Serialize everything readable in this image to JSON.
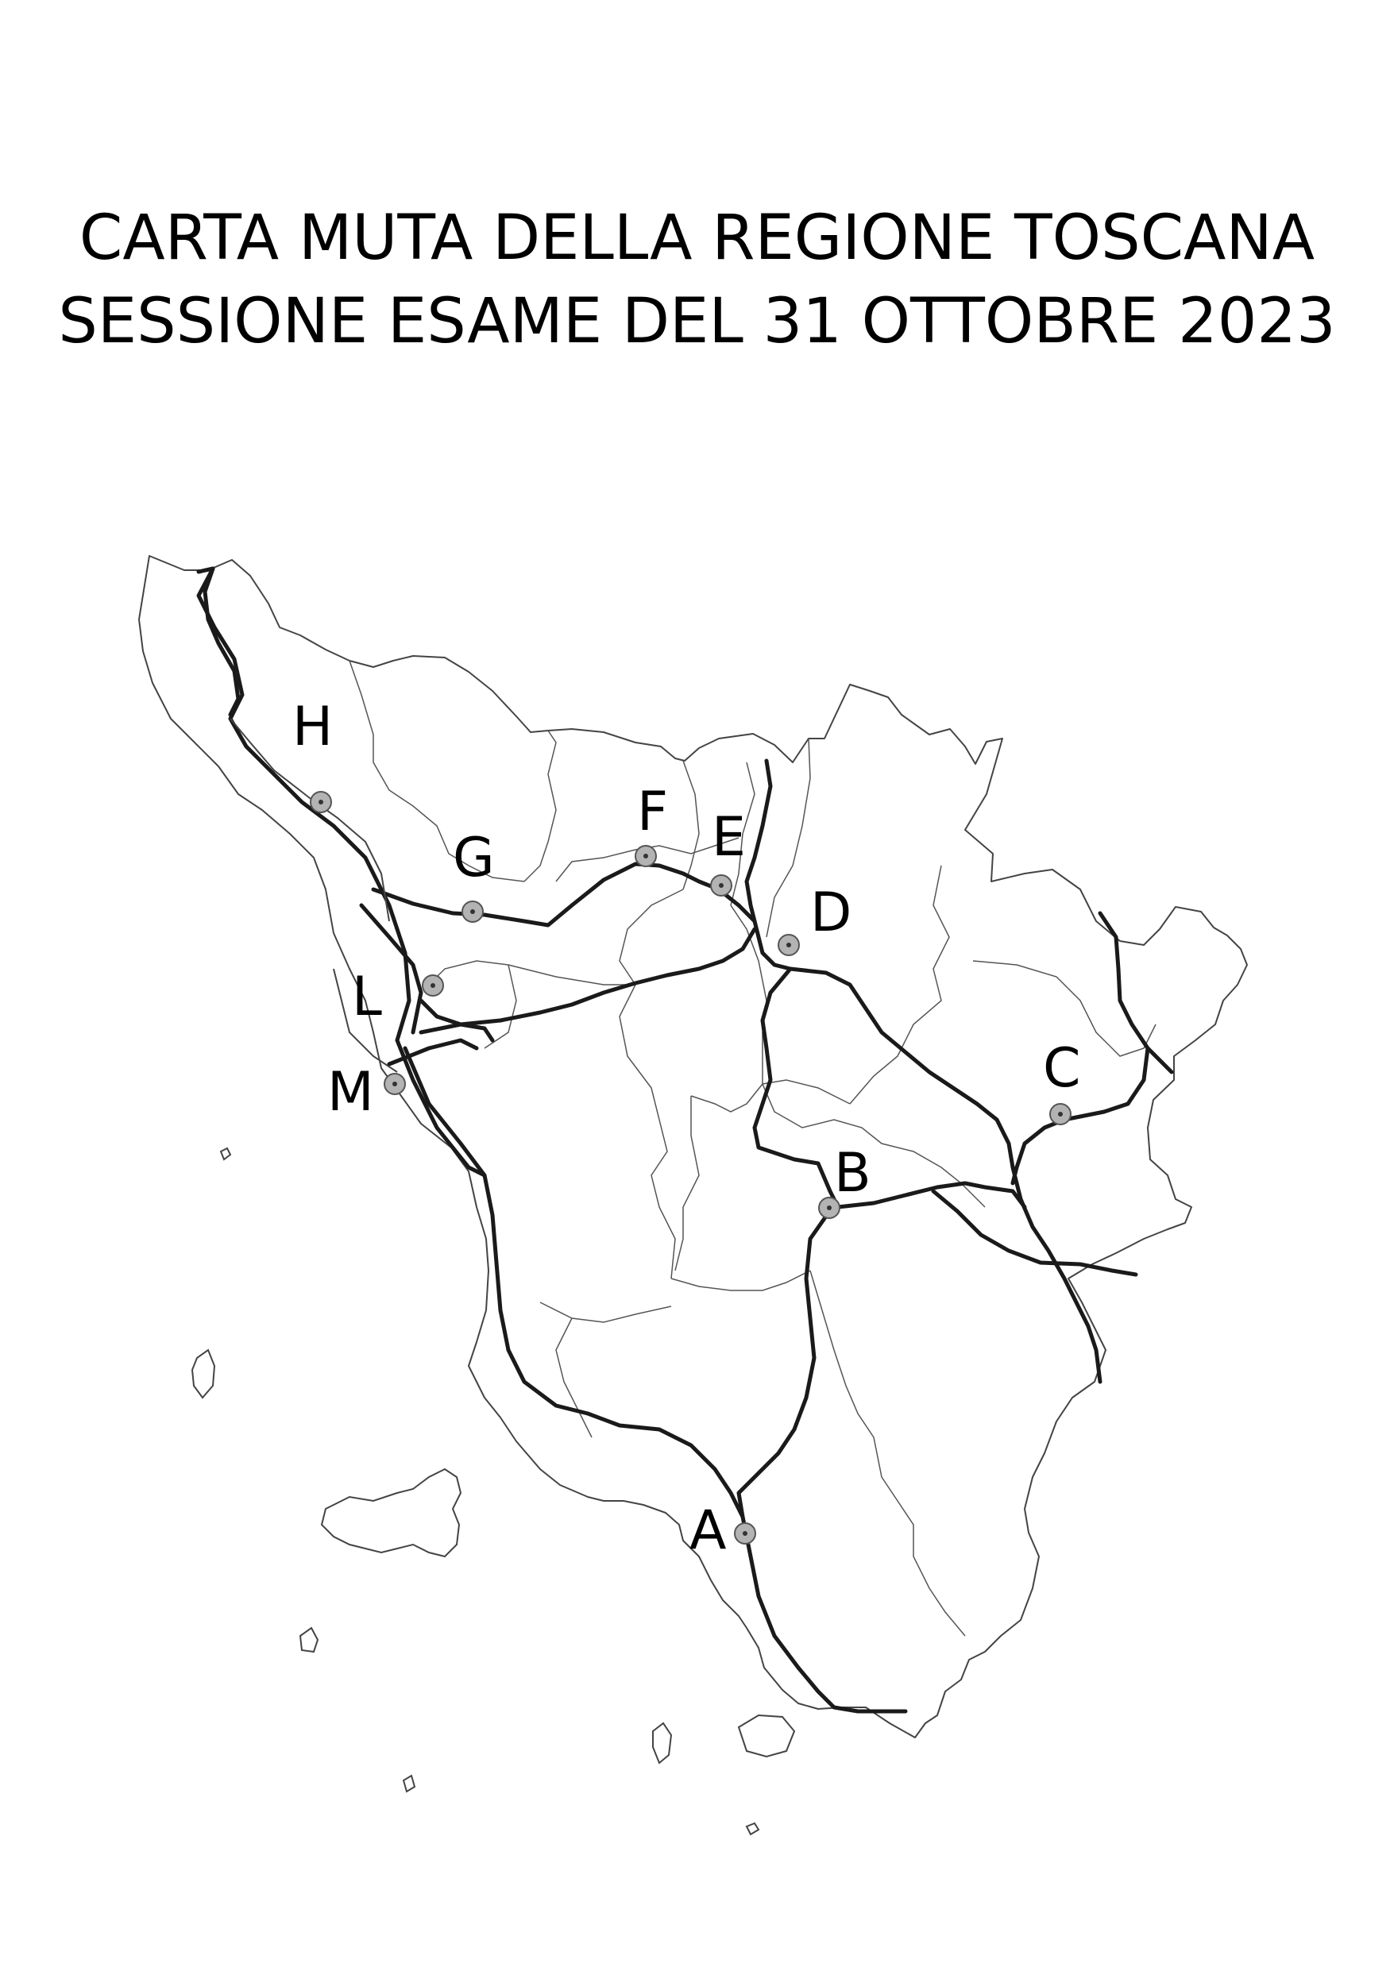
{
  "title": {
    "line1": "CARTA MUTA DELLA REGIONE TOSCANA",
    "line2": "SESSIONE ESAME DEL 31 OTTOBRE 2023"
  },
  "markers": [
    {
      "id": "A",
      "label": "A"
    },
    {
      "id": "B",
      "label": "B"
    },
    {
      "id": "C",
      "label": "C"
    },
    {
      "id": "D",
      "label": "D"
    },
    {
      "id": "E",
      "label": "E"
    },
    {
      "id": "F",
      "label": "F"
    },
    {
      "id": "G",
      "label": "G"
    },
    {
      "id": "H",
      "label": "H"
    },
    {
      "id": "L",
      "label": "L"
    },
    {
      "id": "M",
      "label": "M"
    }
  ],
  "colors": {
    "boundary": "#444444",
    "road": "#1a1a1a",
    "marker_fill": "#b3b3b3",
    "marker_stroke": "#555555"
  }
}
